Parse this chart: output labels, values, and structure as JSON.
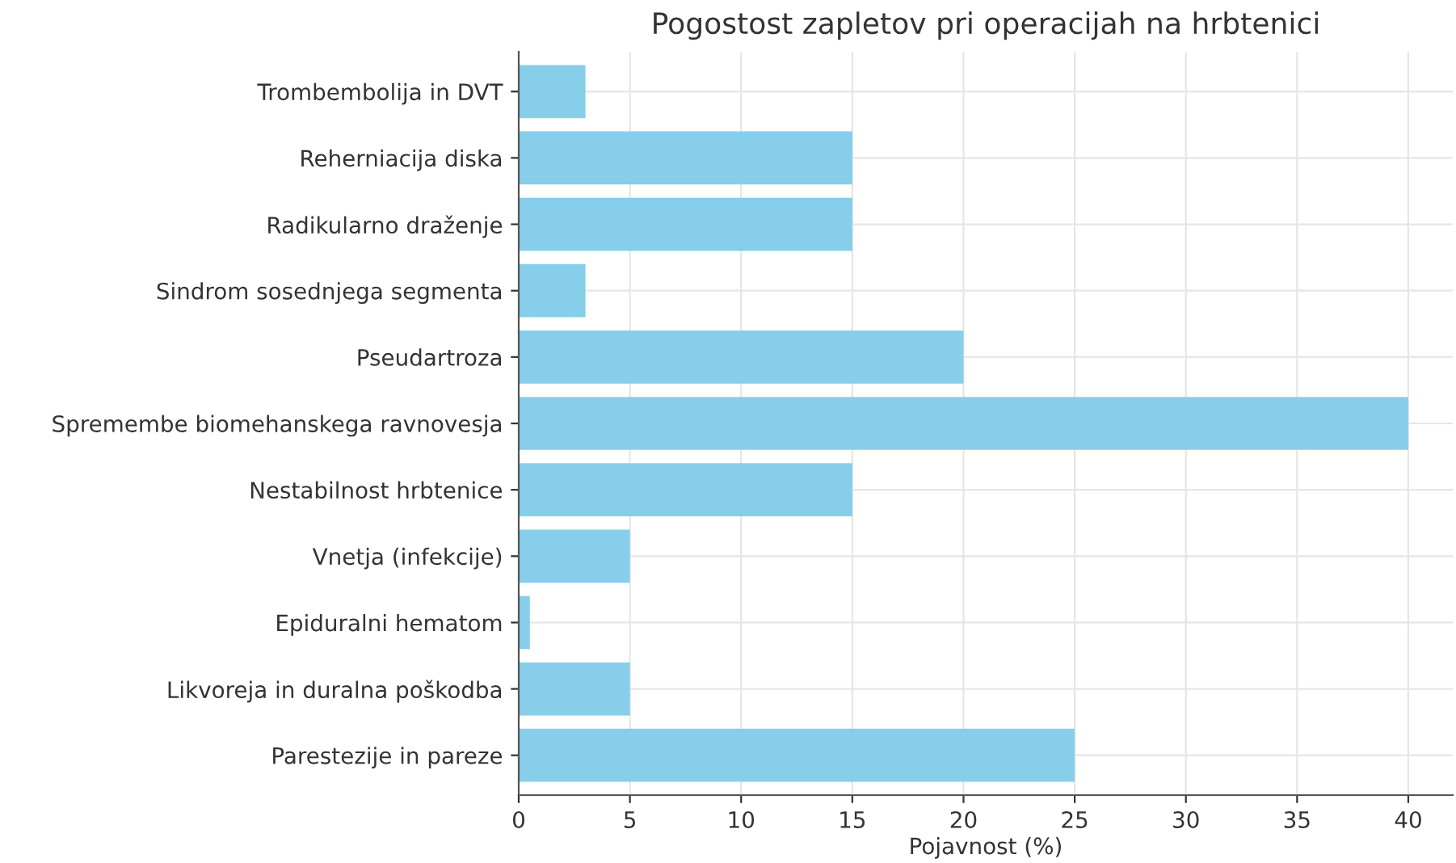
{
  "chart_data": {
    "type": "bar",
    "orientation": "horizontal",
    "title": "Pogostost zapletov pri operacijah na hrbtenici",
    "xlabel": "Pojavnost (%)",
    "categories": [
      "Trombembolija in DVT",
      "Reherniacija diska",
      "Radikularno draženje",
      "Sindrom sosednjega segmenta",
      "Pseudartroza",
      "Spremembe biomehanskega ravnovesja",
      "Nestabilnost hrbtenice",
      "Vnetja (infekcije)",
      "Epiduralni hematom",
      "Likvoreja in duralna poškodba",
      "Parestezije in pareze"
    ],
    "values": [
      3,
      15,
      15,
      3,
      20,
      40,
      15,
      5,
      0.5,
      5,
      25
    ],
    "color": "#87ceeb",
    "xlim": [
      0,
      42
    ],
    "xticks": [
      0,
      5,
      10,
      15,
      20,
      25,
      30,
      35,
      40
    ],
    "grid": true
  }
}
